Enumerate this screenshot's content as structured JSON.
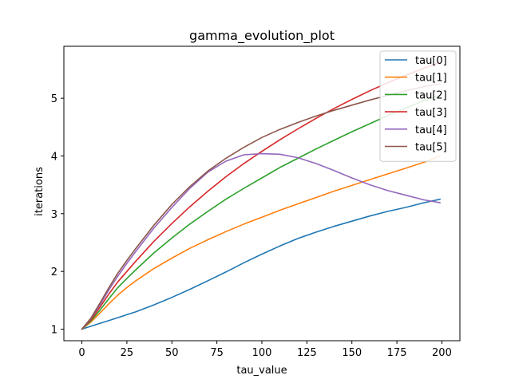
{
  "chart_data": {
    "type": "line",
    "title": "gamma_evolution_plot",
    "xlabel": "tau_value",
    "ylabel": "iterations",
    "xlim": [
      -10,
      210
    ],
    "ylim": [
      0.8,
      5.9
    ],
    "xticks": [
      0,
      25,
      50,
      75,
      100,
      125,
      150,
      175,
      200
    ],
    "xtick_labels": [
      "0",
      "25",
      "50",
      "75",
      "100",
      "125",
      "150",
      "175",
      "200"
    ],
    "yticks": [
      1,
      2,
      3,
      4,
      5
    ],
    "ytick_labels": [
      "1",
      "2",
      "3",
      "4",
      "5"
    ],
    "grid": false,
    "legend_position": "top-right",
    "x": [
      0,
      5,
      10,
      15,
      20,
      25,
      30,
      40,
      50,
      60,
      70,
      80,
      90,
      100,
      110,
      120,
      130,
      140,
      150,
      160,
      170,
      180,
      190,
      199
    ],
    "series": [
      {
        "name": "tau[0]",
        "color": "#1f77b4",
        "values": [
          1.0,
          1.05,
          1.1,
          1.15,
          1.2,
          1.25,
          1.3,
          1.42,
          1.55,
          1.69,
          1.84,
          1.99,
          2.15,
          2.3,
          2.44,
          2.57,
          2.68,
          2.78,
          2.87,
          2.96,
          3.04,
          3.11,
          3.19,
          3.25
        ]
      },
      {
        "name": "tau[1]",
        "color": "#ff7f0e",
        "values": [
          1.0,
          1.12,
          1.28,
          1.44,
          1.59,
          1.72,
          1.84,
          2.05,
          2.23,
          2.4,
          2.55,
          2.69,
          2.82,
          2.94,
          3.06,
          3.17,
          3.28,
          3.39,
          3.49,
          3.59,
          3.69,
          3.79,
          3.89,
          4.0
        ]
      },
      {
        "name": "tau[2]",
        "color": "#2ca02c",
        "values": [
          1.0,
          1.14,
          1.33,
          1.53,
          1.72,
          1.88,
          2.03,
          2.32,
          2.58,
          2.82,
          3.04,
          3.25,
          3.44,
          3.62,
          3.8,
          3.96,
          4.12,
          4.27,
          4.42,
          4.56,
          4.7,
          4.83,
          4.96,
          5.05
        ]
      },
      {
        "name": "tau[3]",
        "color": "#d62728",
        "values": [
          1.0,
          1.16,
          1.38,
          1.61,
          1.82,
          2.0,
          2.18,
          2.52,
          2.83,
          3.12,
          3.39,
          3.64,
          3.87,
          4.08,
          4.28,
          4.47,
          4.65,
          4.82,
          4.98,
          5.13,
          5.27,
          5.4,
          5.52,
          5.62
        ]
      },
      {
        "name": "tau[4]",
        "color": "#9467bd",
        "values": [
          1.0,
          1.18,
          1.42,
          1.68,
          1.92,
          2.14,
          2.35,
          2.75,
          3.11,
          3.44,
          3.72,
          3.91,
          4.02,
          4.04,
          4.03,
          3.97,
          3.87,
          3.75,
          3.62,
          3.5,
          3.4,
          3.32,
          3.24,
          3.19
        ]
      },
      {
        "name": "tau[5]",
        "color": "#8c564b",
        "values": [
          1.0,
          1.19,
          1.45,
          1.72,
          1.97,
          2.19,
          2.4,
          2.8,
          3.16,
          3.47,
          3.74,
          3.96,
          4.15,
          4.32,
          4.46,
          4.58,
          4.69,
          4.79,
          4.88,
          4.97,
          5.05,
          5.13,
          5.2,
          5.25
        ]
      }
    ]
  }
}
